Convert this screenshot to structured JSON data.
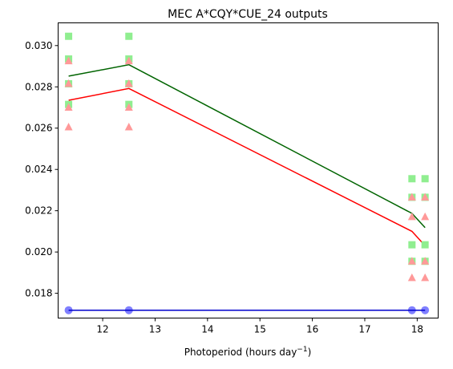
{
  "chart_data": {
    "type": "scatter",
    "title": "MEC A*CQY*CUE_24 outputs",
    "xlabel": "Photoperiod (hours day",
    "xlabel_sup": "−1",
    "xlabel_suffix": ")",
    "ylabel": "",
    "xlim": [
      11.15,
      18.4
    ],
    "ylim": [
      0.0168,
      0.0311
    ],
    "xticks": [
      12,
      13,
      14,
      15,
      16,
      17,
      18
    ],
    "xtick_labels": [
      "12",
      "13",
      "14",
      "15",
      "16",
      "17",
      "18"
    ],
    "yticks": [
      0.018,
      0.02,
      0.022,
      0.024,
      0.026,
      0.028,
      0.03
    ],
    "ytick_labels": [
      "0.018",
      "0.020",
      "0.022",
      "0.024",
      "0.026",
      "0.028",
      "0.030"
    ],
    "grid": false,
    "series": [
      {
        "marker": "square",
        "color": "#90ee90",
        "points": [
          [
            11.35,
            0.03045
          ],
          [
            11.35,
            0.02935
          ],
          [
            11.35,
            0.02815
          ],
          [
            11.35,
            0.02715
          ],
          [
            12.5,
            0.03045
          ],
          [
            12.5,
            0.02935
          ],
          [
            12.5,
            0.02815
          ],
          [
            12.5,
            0.02715
          ],
          [
            17.9,
            0.02355
          ],
          [
            17.9,
            0.02265
          ],
          [
            17.9,
            0.02035
          ],
          [
            17.9,
            0.01955
          ],
          [
            18.15,
            0.02355
          ],
          [
            18.15,
            0.02265
          ],
          [
            18.15,
            0.02035
          ],
          [
            18.15,
            0.01955
          ]
        ]
      },
      {
        "marker": "triangle",
        "color": "#ff9999",
        "points": [
          [
            11.35,
            0.02925
          ],
          [
            11.35,
            0.02815
          ],
          [
            11.35,
            0.027
          ],
          [
            11.35,
            0.02605
          ],
          [
            12.5,
            0.02925
          ],
          [
            12.5,
            0.02815
          ],
          [
            12.5,
            0.027
          ],
          [
            12.5,
            0.02605
          ],
          [
            17.9,
            0.02265
          ],
          [
            17.9,
            0.0217
          ],
          [
            17.9,
            0.01955
          ],
          [
            17.9,
            0.01875
          ],
          [
            18.15,
            0.02265
          ],
          [
            18.15,
            0.0217
          ],
          [
            18.15,
            0.01955
          ],
          [
            18.15,
            0.01875
          ]
        ]
      },
      {
        "marker": "circle",
        "color": "#8080ff",
        "points": [
          [
            11.35,
            0.01718
          ],
          [
            12.5,
            0.01718
          ],
          [
            17.9,
            0.01718
          ],
          [
            18.15,
            0.01718
          ]
        ]
      },
      {
        "marker": "line",
        "color": "#006400",
        "points": [
          [
            11.35,
            0.02852
          ],
          [
            12.5,
            0.02907
          ],
          [
            17.9,
            0.02187
          ],
          [
            18.15,
            0.02118
          ]
        ]
      },
      {
        "marker": "line",
        "color": "#ff0000",
        "points": [
          [
            11.35,
            0.02735
          ],
          [
            12.5,
            0.02792
          ],
          [
            17.9,
            0.021
          ],
          [
            18.15,
            0.0203
          ]
        ]
      },
      {
        "marker": "line",
        "color": "#0000cc",
        "points": [
          [
            11.35,
            0.01718
          ],
          [
            12.5,
            0.01718
          ],
          [
            17.9,
            0.01718
          ],
          [
            18.15,
            0.01718
          ]
        ]
      }
    ]
  }
}
